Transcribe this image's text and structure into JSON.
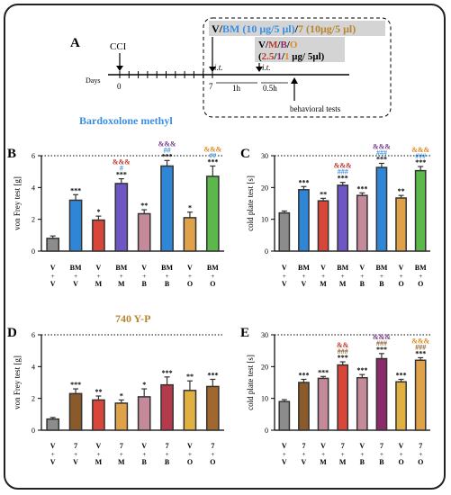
{
  "colors": {
    "grey": "#8c8c8c",
    "blue": "#2f86d6",
    "red": "#d8463a",
    "purple": "#6e57c4",
    "mauve": "#c48a9a",
    "orange": "#e0a248",
    "green": "#5cb84a",
    "brown": "#8a5a2b",
    "crimson": "#b23a4a",
    "darkpurple": "#8a2a6a",
    "tan": "#e0b040",
    "brm_brown": "#a0672e",
    "label_blue": "#3a8fe0",
    "label_tan": "#b8862e",
    "amp_red": "#c0392b",
    "amp_purple": "#7a3a8a",
    "amp_orange": "#e08a20",
    "hash_blue": "#3a8fe0",
    "hash_brown": "#8a5a2b"
  },
  "timeline": {
    "panel_letter": "A",
    "cci": "CCI",
    "days": "Days",
    "day0": "0",
    "day7": "7",
    "it1": "i.t.",
    "it2": "i.t.",
    "h1": "1h",
    "h05": "0.5h",
    "behav": "behavioral tests",
    "header_line": {
      "v": "V/",
      "bm": "BM (10 μg/5 μl)",
      "slash": "/",
      "seven": "7 (10μg/5 μl)"
    },
    "inner": {
      "l1_v": "V/",
      "l1_m": "M",
      "l1_s1": "/",
      "l1_b": "B",
      "l1_s2": "/",
      "l1_o": "O",
      "l2_open": "(",
      "l2_a": "2.5",
      "l2_s1": "/",
      "l2_b": "1",
      "l2_s2": "/",
      "l2_c": "1",
      "l2_rest": " μg/ 5μl)"
    }
  },
  "section_labels": {
    "bm": "Bardoxolone methyl",
    "yp": "740 Y-P"
  },
  "chart_data": [
    {
      "panel": "B",
      "type": "bar",
      "ylabel": "von Frey test [g]",
      "ylim": [
        0,
        6
      ],
      "yticks": [
        0,
        2,
        4,
        6
      ],
      "categories": [
        [
          "V",
          "V"
        ],
        [
          "BM",
          "V"
        ],
        [
          "V",
          "M"
        ],
        [
          "BM",
          "M"
        ],
        [
          "V",
          "B"
        ],
        [
          "BM",
          "B"
        ],
        [
          "V",
          "O"
        ],
        [
          "BM",
          "O"
        ]
      ],
      "values": [
        0.8,
        3.2,
        1.95,
        4.25,
        2.35,
        5.35,
        2.1,
        4.7
      ],
      "errors": [
        0.15,
        0.35,
        0.25,
        0.3,
        0.25,
        0.35,
        0.35,
        0.65
      ],
      "colors": [
        "grey",
        "blue",
        "red",
        "purple",
        "mauve",
        "blue",
        "orange",
        "green"
      ],
      "annotations": [
        {
          "bar": 1,
          "lines": [
            {
              "t": "***",
              "c": "black"
            }
          ]
        },
        {
          "bar": 2,
          "lines": [
            {
              "t": "*",
              "c": "black"
            }
          ]
        },
        {
          "bar": 3,
          "lines": [
            {
              "t": "***",
              "c": "black"
            },
            {
              "t": "#",
              "c": "hash_blue"
            },
            {
              "t": "&&&",
              "c": "amp_red"
            }
          ]
        },
        {
          "bar": 4,
          "lines": [
            {
              "t": "**",
              "c": "black"
            }
          ]
        },
        {
          "bar": 5,
          "lines": [
            {
              "t": "***",
              "c": "black"
            },
            {
              "t": "##",
              "c": "hash_blue"
            },
            {
              "t": "&&&",
              "c": "amp_purple"
            }
          ]
        },
        {
          "bar": 6,
          "lines": [
            {
              "t": "*",
              "c": "black"
            }
          ]
        },
        {
          "bar": 7,
          "lines": [
            {
              "t": "***",
              "c": "black"
            },
            {
              "t": "##",
              "c": "hash_blue"
            },
            {
              "t": "&&&",
              "c": "amp_orange"
            }
          ]
        }
      ]
    },
    {
      "panel": "C",
      "type": "bar",
      "ylabel": "cold plate test [s]",
      "ylim": [
        0,
        30
      ],
      "yticks": [
        0,
        10,
        20,
        30
      ],
      "categories": [
        [
          "V",
          "V"
        ],
        [
          "BM",
          "V"
        ],
        [
          "V",
          "M"
        ],
        [
          "BM",
          "M"
        ],
        [
          "V",
          "B"
        ],
        [
          "BM",
          "B"
        ],
        [
          "V",
          "O"
        ],
        [
          "BM",
          "O"
        ]
      ],
      "values": [
        12,
        19.3,
        15.8,
        20.7,
        17.5,
        26.3,
        16.7,
        25.3
      ],
      "errors": [
        0.6,
        1.0,
        0.8,
        0.9,
        0.8,
        1.3,
        0.8,
        1.3
      ],
      "colors": [
        "grey",
        "blue",
        "red",
        "purple",
        "mauve",
        "blue",
        "orange",
        "green"
      ],
      "annotations": [
        {
          "bar": 1,
          "lines": [
            {
              "t": "***",
              "c": "black"
            }
          ]
        },
        {
          "bar": 2,
          "lines": [
            {
              "t": "**",
              "c": "black"
            }
          ]
        },
        {
          "bar": 3,
          "lines": [
            {
              "t": "***",
              "c": "black"
            },
            {
              "t": "###",
              "c": "hash_blue"
            },
            {
              "t": "&&&",
              "c": "amp_red"
            }
          ]
        },
        {
          "bar": 4,
          "lines": [
            {
              "t": "***",
              "c": "black"
            }
          ]
        },
        {
          "bar": 5,
          "lines": [
            {
              "t": "***",
              "c": "black"
            },
            {
              "t": "###",
              "c": "hash_blue"
            },
            {
              "t": "&&&",
              "c": "amp_purple"
            }
          ]
        },
        {
          "bar": 6,
          "lines": [
            {
              "t": "**",
              "c": "black"
            }
          ]
        },
        {
          "bar": 7,
          "lines": [
            {
              "t": "***",
              "c": "black"
            },
            {
              "t": "###",
              "c": "hash_blue"
            },
            {
              "t": "&&&",
              "c": "amp_orange"
            }
          ]
        }
      ]
    },
    {
      "panel": "D",
      "type": "bar",
      "ylabel": "von Frey test [g]",
      "ylim": [
        0,
        6
      ],
      "yticks": [
        0,
        2,
        4,
        6
      ],
      "categories": [
        [
          "V",
          "V"
        ],
        [
          "7",
          "V"
        ],
        [
          "V",
          "M"
        ],
        [
          "7",
          "M"
        ],
        [
          "V",
          "B"
        ],
        [
          "7",
          "B"
        ],
        [
          "V",
          "O"
        ],
        [
          "7",
          "O"
        ]
      ],
      "values": [
        0.7,
        2.3,
        1.9,
        1.7,
        2.1,
        2.85,
        2.5,
        2.75
      ],
      "errors": [
        0.1,
        0.3,
        0.25,
        0.2,
        0.5,
        0.5,
        0.6,
        0.45
      ],
      "colors": [
        "grey",
        "brown",
        "red",
        "orange",
        "mauve",
        "crimson",
        "tan",
        "brm_brown"
      ],
      "annotations": [
        {
          "bar": 1,
          "lines": [
            {
              "t": "***",
              "c": "black"
            }
          ]
        },
        {
          "bar": 2,
          "lines": [
            {
              "t": "**",
              "c": "black"
            }
          ]
        },
        {
          "bar": 3,
          "lines": [
            {
              "t": "*",
              "c": "black"
            }
          ]
        },
        {
          "bar": 4,
          "lines": [
            {
              "t": "*",
              "c": "black"
            }
          ]
        },
        {
          "bar": 5,
          "lines": [
            {
              "t": "***",
              "c": "black"
            }
          ]
        },
        {
          "bar": 6,
          "lines": [
            {
              "t": "**",
              "c": "black"
            }
          ]
        },
        {
          "bar": 7,
          "lines": [
            {
              "t": "***",
              "c": "black"
            }
          ]
        }
      ]
    },
    {
      "panel": "E",
      "type": "bar",
      "ylabel": "cold plate test [s]",
      "ylim": [
        0,
        30
      ],
      "yticks": [
        0,
        10,
        20,
        30
      ],
      "categories": [
        [
          "V",
          "V"
        ],
        [
          "7",
          "V"
        ],
        [
          "V",
          "M"
        ],
        [
          "7",
          "M"
        ],
        [
          "V",
          "B"
        ],
        [
          "7",
          "B"
        ],
        [
          "V",
          "O"
        ],
        [
          "7",
          "O"
        ]
      ],
      "values": [
        9,
        15,
        16.3,
        20.5,
        16.5,
        22.5,
        15.2,
        22
      ],
      "errors": [
        0.6,
        1.0,
        0.6,
        1.0,
        1.0,
        1.6,
        0.8,
        0.8
      ],
      "colors": [
        "grey",
        "brown",
        "mauve",
        "red",
        "mauve",
        "darkpurple",
        "tan",
        "orange"
      ],
      "annotations": [
        {
          "bar": 1,
          "lines": [
            {
              "t": "***",
              "c": "black"
            }
          ]
        },
        {
          "bar": 2,
          "lines": [
            {
              "t": "***",
              "c": "black"
            }
          ]
        },
        {
          "bar": 3,
          "lines": [
            {
              "t": "***",
              "c": "black"
            },
            {
              "t": "###",
              "c": "hash_brown"
            },
            {
              "t": "&&",
              "c": "amp_red"
            }
          ]
        },
        {
          "bar": 4,
          "lines": [
            {
              "t": "***",
              "c": "black"
            }
          ]
        },
        {
          "bar": 5,
          "lines": [
            {
              "t": "***",
              "c": "black"
            },
            {
              "t": "###",
              "c": "hash_brown"
            },
            {
              "t": "&&&",
              "c": "amp_purple"
            }
          ]
        },
        {
          "bar": 6,
          "lines": [
            {
              "t": "***",
              "c": "black"
            }
          ]
        },
        {
          "bar": 7,
          "lines": [
            {
              "t": "***",
              "c": "black"
            },
            {
              "t": "###",
              "c": "hash_brown"
            },
            {
              "t": "&&&",
              "c": "amp_orange"
            }
          ]
        }
      ]
    }
  ]
}
